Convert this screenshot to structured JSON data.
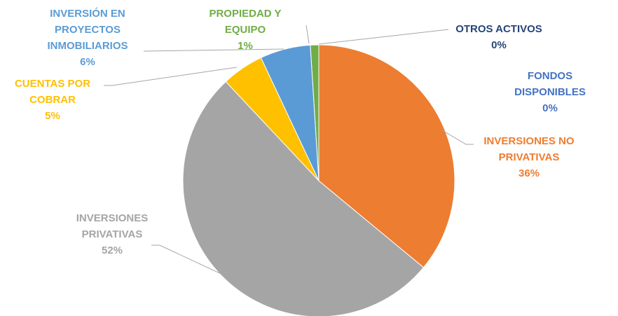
{
  "chart_data": {
    "type": "pie",
    "categories": [
      "FONDOS DISPONIBLES",
      "INVERSIONES NO PRIVATIVAS",
      "INVERSIONES PRIVATIVAS",
      "CUENTAS POR COBRAR",
      "INVERSIÓN EN PROYECTOS INMOBILIARIOS",
      "PROPIEDAD Y EQUIPO",
      "OTROS ACTIVOS"
    ],
    "values": [
      0,
      36,
      52,
      5,
      6,
      1,
      0
    ],
    "value_labels": [
      "0%",
      "36%",
      "52%",
      "5%",
      "6%",
      "1%",
      "0%"
    ],
    "colors": [
      "#4472c4",
      "#ed7d31",
      "#a5a5a5",
      "#ffc000",
      "#5b9bd5",
      "#70ad47",
      "#264478"
    ]
  }
}
